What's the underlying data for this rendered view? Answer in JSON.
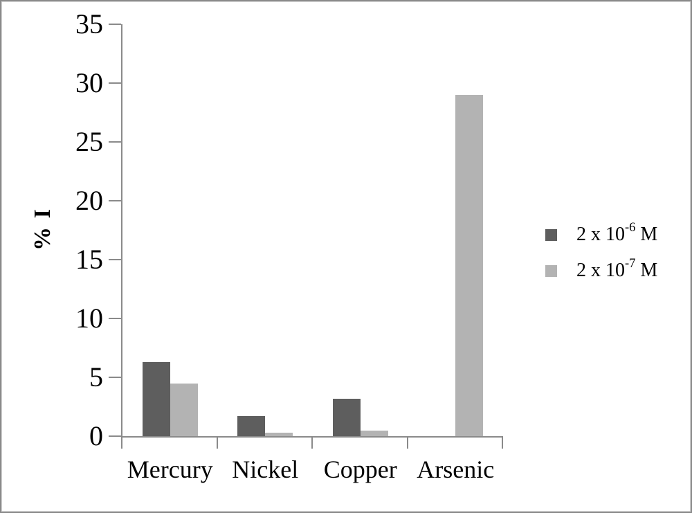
{
  "chart_data": {
    "type": "bar",
    "title": "",
    "xlabel": "",
    "ylabel": "% I",
    "ylim": [
      0,
      35
    ],
    "yticks": [
      0,
      5,
      10,
      15,
      20,
      25,
      30,
      35
    ],
    "grid": false,
    "legend_position": "right",
    "categories": [
      "Mercury",
      "Nickel",
      "Copper",
      "Arsenic"
    ],
    "series": [
      {
        "name": "2 x 10-6 M",
        "label_base": "2 x 10",
        "label_exponent": "-6",
        "label_suffix": " M",
        "color": "#5e5e5e",
        "values": [
          6.3,
          1.7,
          3.2,
          0
        ]
      },
      {
        "name": "2 x 10-7 M",
        "label_base": "2 x 10",
        "label_exponent": "-7",
        "label_suffix": " M",
        "color": "#b3b3b3",
        "values": [
          4.5,
          0.3,
          0.5,
          29
        ]
      }
    ],
    "colors": {
      "axis": "#8a8a8a",
      "text": "#000000",
      "background": "#ffffff",
      "frame_border": "#8a8a8a"
    }
  }
}
